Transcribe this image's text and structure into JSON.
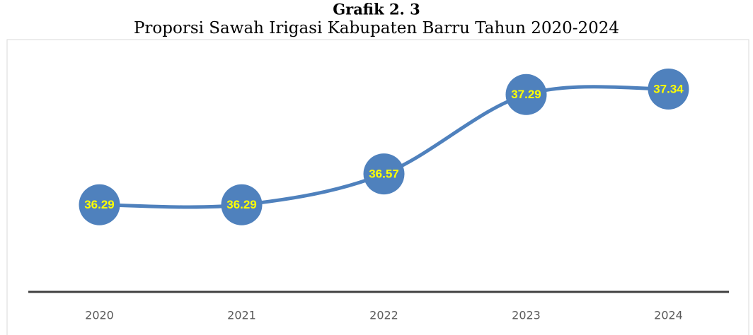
{
  "chart_data": {
    "type": "line",
    "title": "Grafik 2. 3",
    "subtitle": "Proporsi Sawah Irigasi Kabupaten Barru Tahun 2020-2024",
    "categories": [
      "2020",
      "2021",
      "2022",
      "2023",
      "2024"
    ],
    "values": [
      36.29,
      36.29,
      36.57,
      37.29,
      37.34
    ],
    "color": "#4f81bd",
    "ylim": [
      35.5,
      37.5
    ],
    "smooth": true,
    "data_labels": true
  }
}
